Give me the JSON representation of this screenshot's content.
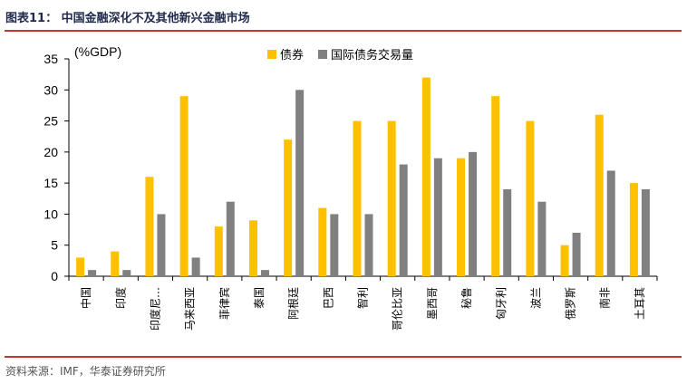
{
  "figure": {
    "title": "图表11：  中国金融深化不及其他新兴金融市场",
    "source": "资料来源：IMF，华泰证券研究所"
  },
  "colors": {
    "accent_rule": "#c0392b",
    "series_bonds": "#ffc000",
    "series_intl": "#808080"
  },
  "chart_data": {
    "type": "bar",
    "unit_label": "(%GDP)",
    "categories": [
      "中国",
      "印度",
      "印度尼…",
      "马来西亚",
      "菲律宾",
      "泰国",
      "阿根廷",
      "巴西",
      "智利",
      "哥伦比亚",
      "墨西哥",
      "秘鲁",
      "匈牙利",
      "波兰",
      "俄罗斯",
      "南非",
      "土耳其"
    ],
    "series": [
      {
        "name": "债券",
        "color": "#ffc000",
        "values": [
          3,
          4,
          16,
          29,
          8,
          9,
          22,
          11,
          25,
          25,
          32,
          19,
          29,
          25,
          5,
          26,
          15
        ]
      },
      {
        "name": "国际债务交易量",
        "color": "#808080",
        "values": [
          1,
          1,
          10,
          3,
          12,
          1,
          30,
          10,
          10,
          18,
          19,
          20,
          14,
          12,
          7,
          17,
          14
        ]
      }
    ],
    "ylim": [
      0,
      35
    ],
    "yticks": [
      0,
      5,
      10,
      15,
      20,
      25,
      30,
      35
    ],
    "legend_position": "top"
  }
}
